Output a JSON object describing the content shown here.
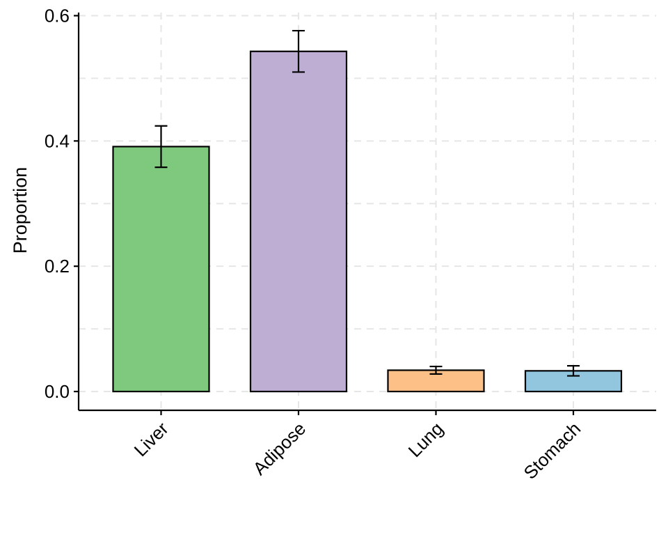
{
  "chart_data": {
    "type": "bar",
    "title": "",
    "xlabel": "",
    "ylabel": "Proportion",
    "categories": [
      "Liver",
      "Adipose",
      "Lung",
      "Stomach"
    ],
    "values": [
      0.391,
      0.543,
      0.034,
      0.033
    ],
    "error_low": [
      0.358,
      0.51,
      0.028,
      0.025
    ],
    "error_high": [
      0.424,
      0.576,
      0.04,
      0.041
    ],
    "colors": [
      "#7fc97f",
      "#beaed4",
      "#fdc086",
      "#92c5de"
    ],
    "ylim": [
      -0.03,
      0.605
    ],
    "yticks": [
      0.0,
      0.2,
      0.4,
      0.6
    ],
    "ytick_labels": [
      "0.0",
      "0.2",
      "0.4",
      "0.6"
    ],
    "grid": true,
    "legend": "none"
  }
}
